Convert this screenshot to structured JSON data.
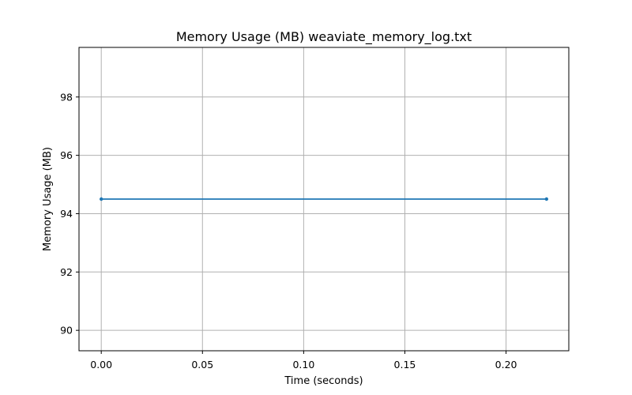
{
  "chart_data": {
    "type": "line",
    "title": "Memory Usage (MB) weaviate_memory_log.txt",
    "xlabel": "Time (seconds)",
    "ylabel": "Memory Usage (MB)",
    "xlim": [
      -0.011,
      0.231
    ],
    "ylim": [
      89.3,
      99.7
    ],
    "xticks": [
      0.0,
      0.05,
      0.1,
      0.15,
      0.2
    ],
    "xtick_labels": [
      "0.00",
      "0.05",
      "0.10",
      "0.15",
      "0.20"
    ],
    "yticks": [
      90,
      92,
      94,
      96,
      98
    ],
    "ytick_labels": [
      "90",
      "92",
      "94",
      "96",
      "98"
    ],
    "grid": true,
    "series": [
      {
        "color": "#1f77b4",
        "marker": "dot",
        "x": [
          0.0,
          0.22
        ],
        "y": [
          94.5,
          94.5
        ]
      }
    ]
  }
}
